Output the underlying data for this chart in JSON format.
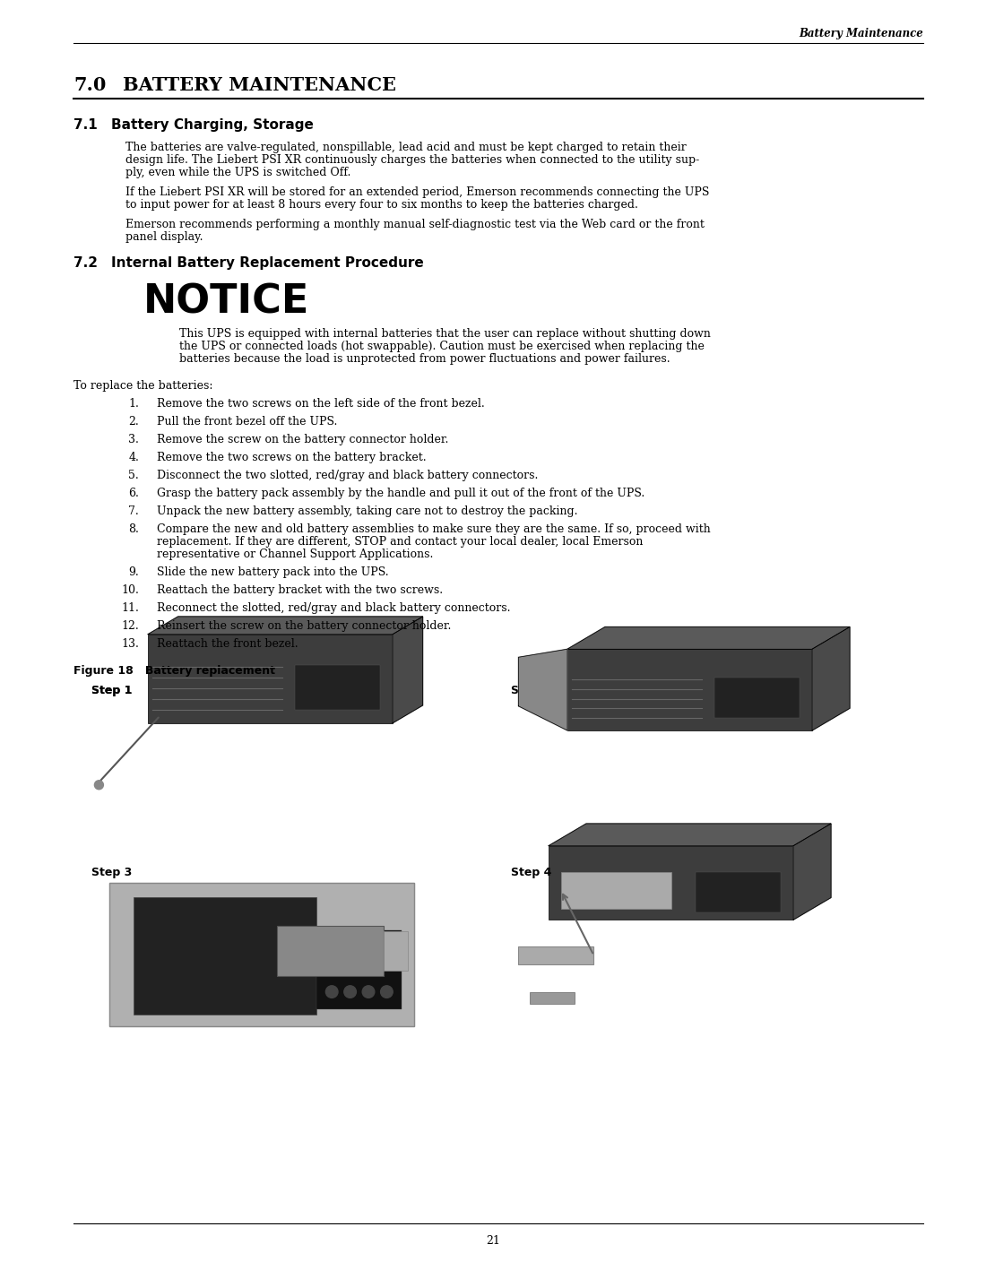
{
  "page_header_right": "Battery Maintenance",
  "section_70_num": "7.0",
  "section_70_title": "Battery Maintenance",
  "section_71_num": "7.1",
  "section_71_title": "Battery Charging, Storage",
  "para1_lines": [
    "The batteries are valve-regulated, nonspillable, lead acid and must be kept charged to retain their",
    "design life. The Liebert PSI XR continuously charges the batteries when connected to the utility sup-",
    "ply, even while the UPS is switched Off."
  ],
  "para2_lines": [
    "If the Liebert PSI XR will be stored for an extended period, Emerson recommends connecting the UPS",
    "to input power for at least 8 hours every four to six months to keep the batteries charged."
  ],
  "para3_lines": [
    "Emerson recommends performing a monthly manual self-diagnostic test via the Web card or the front",
    "panel display."
  ],
  "section_72_num": "7.2",
  "section_72_title": "Internal Battery Replacement Procedure",
  "notice_title": "NOTICE",
  "notice_lines": [
    "This UPS is equipped with internal batteries that the user can replace without shutting down",
    "the UPS or connected loads (hot swappable). Caution must be exercised when replacing the",
    "batteries because the load is unprotected from power fluctuations and power failures."
  ],
  "to_replace": "To replace the batteries:",
  "steps": [
    [
      "Remove the two screws on the left side of the front bezel."
    ],
    [
      "Pull the front bezel off the UPS."
    ],
    [
      "Remove the screw on the battery connector holder."
    ],
    [
      "Remove the two screws on the battery bracket."
    ],
    [
      "Disconnect the two slotted, red/gray and black battery connectors."
    ],
    [
      "Grasp the battery pack assembly by the handle and pull it out of the front of the UPS."
    ],
    [
      "Unpack the new battery assembly, taking care not to destroy the packing."
    ],
    [
      "Compare the new and old battery assemblies to make sure they are the same. If so, proceed with",
      "replacement. If they are different, STOP and contact your local dealer, local Emerson",
      "representative or Channel Support Applications."
    ],
    [
      "Slide the new battery pack into the UPS."
    ],
    [
      "Reattach the battery bracket with the two screws."
    ],
    [
      "Reconnect the slotted, red/gray and black battery connectors."
    ],
    [
      "Reinsert the screw on the battery connector holder."
    ],
    [
      "Reattach the front bezel."
    ]
  ],
  "figure_label": "Figure 18",
  "figure_title": "Battery replacement",
  "step1_label": "Step 1",
  "step2_label": "Step 2",
  "step3_label": "Step 3",
  "step4_label": "Step 4",
  "page_number": "21",
  "bg_color": "#ffffff"
}
